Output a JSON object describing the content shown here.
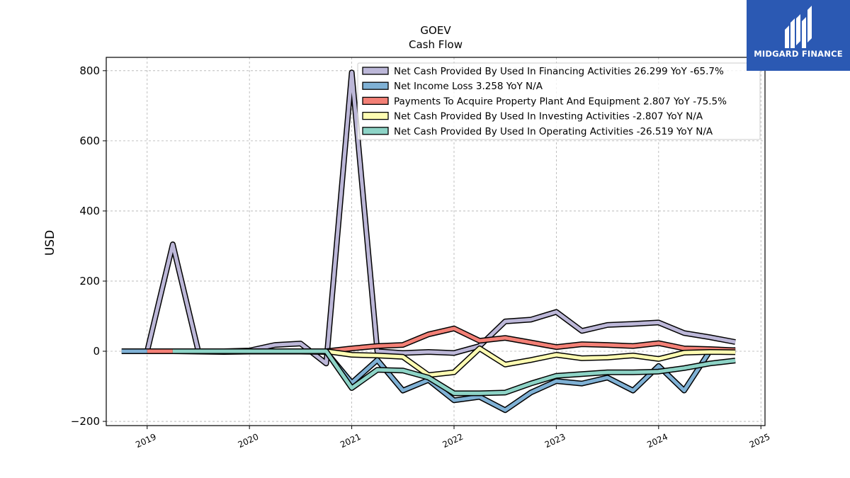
{
  "brand": {
    "name": "MIDGARD FINANCE",
    "color": "#2b59b3"
  },
  "chart_data": {
    "type": "line",
    "title": "GOEV",
    "subtitle": "Cash Flow",
    "xlabel": "",
    "ylabel": "USD",
    "xlim": [
      2018.6,
      2025.04
    ],
    "ylim": [
      -212,
      838
    ],
    "xticks": [
      "2019",
      "2020",
      "2021",
      "2022",
      "2023",
      "2024",
      "2025"
    ],
    "yticks": [
      -200,
      0,
      200,
      400,
      600,
      800
    ],
    "grid": true,
    "legend_position": "top-right",
    "series": [
      {
        "name": "Net Cash Provided By Used In Financing Activities  26.299 YoY -65.7%",
        "color": "#bcb7d8",
        "x": [
          2019.0,
          2019.25,
          2019.5,
          2019.75,
          2020.0,
          2020.25,
          2020.5,
          2020.75,
          2021.0,
          2021.25,
          2021.5,
          2021.75,
          2022.0,
          2022.25,
          2022.5,
          2022.75,
          2023.0,
          2023.25,
          2023.5,
          2023.75,
          2024.0,
          2024.25,
          2024.5,
          2024.75
        ],
        "y": [
          0,
          305,
          0,
          0,
          2,
          18,
          22,
          -35,
          795,
          0,
          -5,
          -2,
          -5,
          15,
          85,
          90,
          112,
          58,
          75,
          78,
          82,
          52,
          40,
          26.299
        ]
      },
      {
        "name": "Net Income Loss  3.258 YoY N/A",
        "color": "#7fb1d5",
        "x": [
          2018.75,
          2019.0,
          2019.25,
          2019.5,
          2019.75,
          2020.0,
          2020.25,
          2020.5,
          2020.75,
          2021.0,
          2021.25,
          2021.5,
          2021.75,
          2022.0,
          2022.25,
          2022.5,
          2022.75,
          2023.0,
          2023.25,
          2023.5,
          2023.75,
          2024.0,
          2024.25,
          2024.5,
          2024.75
        ],
        "y": [
          0,
          0,
          0,
          -1,
          -2,
          -1,
          -1,
          -1,
          -2,
          -90,
          -25,
          -112,
          -82,
          -140,
          -130,
          -168,
          -118,
          -85,
          -92,
          -75,
          -112,
          -42,
          -112,
          0,
          3.258
        ]
      },
      {
        "name": "Payments To Acquire Property Plant And Equipment  2.807 YoY -75.5%",
        "color": "#f38076",
        "x": [
          2019.0,
          2019.25,
          2019.5,
          2019.75,
          2020.0,
          2020.25,
          2020.5,
          2020.75,
          2021.0,
          2021.25,
          2021.5,
          2021.75,
          2022.0,
          2022.25,
          2022.5,
          2022.75,
          2023.0,
          2023.25,
          2023.5,
          2023.75,
          2024.0,
          2024.25,
          2024.5,
          2024.75
        ],
        "y": [
          0,
          0,
          0,
          0,
          0,
          0,
          0,
          0,
          8,
          15,
          18,
          48,
          65,
          30,
          38,
          25,
          12,
          20,
          18,
          15,
          23,
          8,
          6,
          2.807
        ]
      },
      {
        "name": "Net Cash Provided By Used In Investing Activities  -2.807 YoY N/A",
        "color": "#fefcb2",
        "x": [
          2019.25,
          2019.5,
          2019.75,
          2020.0,
          2020.25,
          2020.5,
          2020.75,
          2021.0,
          2021.25,
          2021.5,
          2021.75,
          2022.0,
          2022.25,
          2022.5,
          2022.75,
          2023.0,
          2023.25,
          2023.5,
          2023.75,
          2024.0,
          2024.25,
          2024.5,
          2024.75
        ],
        "y": [
          0,
          0,
          0,
          0,
          0,
          0,
          0,
          -10,
          -12,
          -16,
          -68,
          -60,
          8,
          -38,
          -25,
          -10,
          -20,
          -18,
          -12,
          -22,
          -4,
          -2,
          -2.807
        ]
      },
      {
        "name": "Net Cash Provided By Used In Operating Activities  -26.519 YoY N/A",
        "color": "#8dd3c6",
        "x": [
          2019.25,
          2019.5,
          2019.75,
          2020.0,
          2020.25,
          2020.5,
          2020.75,
          2021.0,
          2021.25,
          2021.5,
          2021.75,
          2022.0,
          2022.25,
          2022.5,
          2022.75,
          2023.0,
          2023.25,
          2023.5,
          2023.75,
          2024.0,
          2024.25,
          2024.5,
          2024.75
        ],
        "y": [
          0,
          0,
          0,
          0,
          0,
          0,
          0,
          -105,
          -53,
          -55,
          -75,
          -120,
          -120,
          -118,
          -92,
          -70,
          -65,
          -60,
          -60,
          -58,
          -48,
          -35,
          -26.519
        ]
      }
    ]
  }
}
